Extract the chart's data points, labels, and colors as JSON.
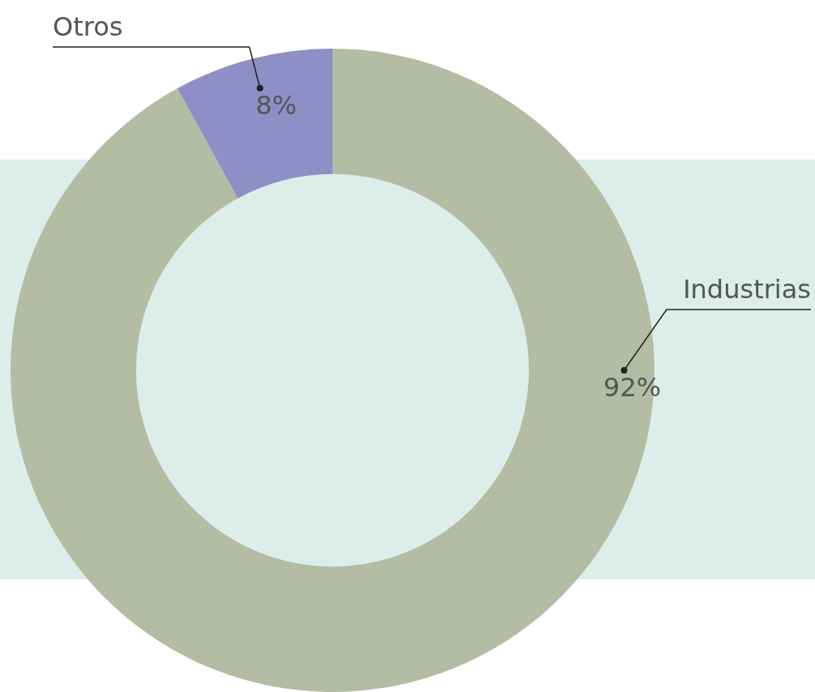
{
  "chart_data": {
    "type": "donut",
    "categories": [
      "Industrias",
      "Otros"
    ],
    "values": [
      92,
      8
    ],
    "colors": [
      "#b5bca4",
      "#8d8fc6"
    ],
    "value_labels": [
      "92%",
      "8%"
    ],
    "legend": false
  }
}
